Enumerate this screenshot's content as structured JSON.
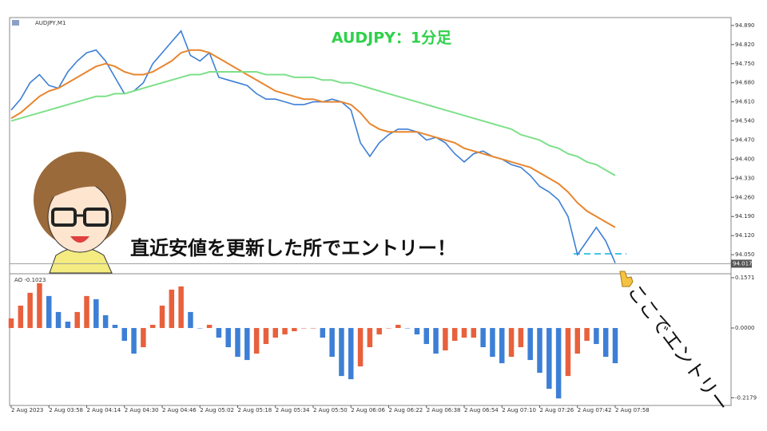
{
  "chart_data": [
    {
      "type": "line",
      "title": "AUDJPY,M1",
      "annotations": [
        "AUDJPY：1分足",
        "直近安値を更新した所でエントリー！",
        "ここでエントリー"
      ],
      "categories": [
        "2 Aug 2023",
        null,
        null,
        null,
        "2 Aug 03:58",
        null,
        null,
        null,
        "2 Aug 04:14",
        null,
        null,
        null,
        "2 Aug 04:30",
        null,
        null,
        null,
        "2 Aug 04:46",
        null,
        null,
        null,
        "2 Aug 05:02",
        null,
        null,
        null,
        "2 Aug 05:18",
        null,
        null,
        null,
        "2 Aug 05:34",
        null,
        null,
        null,
        "2 Aug 05:50",
        null,
        null,
        null,
        "2 Aug 06:06",
        null,
        null,
        null,
        "2 Aug 06:22",
        null,
        null,
        null,
        "2 Aug 06:38",
        null,
        null,
        null,
        "2 Aug 06:54",
        null,
        null,
        null,
        "2 Aug 07:10",
        null,
        null,
        null,
        "2 Aug 07:26",
        null,
        null,
        null,
        "2 Aug 07:42",
        null,
        null,
        null,
        "2 Aug 07:58"
      ],
      "series": [
        {
          "color": "#3d7fd6",
          "values": [
            94.58,
            94.62,
            94.68,
            94.71,
            94.67,
            94.66,
            94.72,
            94.76,
            94.79,
            94.8,
            94.76,
            94.7,
            94.64,
            94.65,
            94.68,
            94.75,
            94.79,
            94.83,
            94.87,
            94.78,
            94.76,
            94.79,
            94.7,
            94.69,
            94.68,
            94.67,
            94.64,
            94.62,
            94.62,
            94.61,
            94.6,
            94.6,
            94.61,
            94.61,
            94.62,
            94.61,
            94.58,
            94.46,
            94.41,
            94.46,
            94.49,
            94.51,
            94.51,
            94.5,
            94.47,
            94.48,
            94.46,
            94.42,
            94.39,
            94.42,
            94.43,
            94.41,
            94.4,
            94.38,
            94.37,
            94.34,
            94.3,
            94.28,
            94.25,
            94.19,
            94.05,
            94.1,
            94.15,
            94.1,
            94.02
          ]
        },
        {
          "color": "#e8862e",
          "values": [
            94.55,
            94.57,
            94.6,
            94.63,
            94.65,
            94.66,
            94.68,
            94.7,
            94.72,
            94.74,
            94.75,
            94.74,
            94.72,
            94.71,
            94.71,
            94.72,
            94.74,
            94.76,
            94.79,
            94.8,
            94.8,
            94.79,
            94.77,
            94.75,
            94.73,
            94.71,
            94.69,
            94.67,
            94.65,
            94.64,
            94.63,
            94.62,
            94.62,
            94.61,
            94.61,
            94.61,
            94.6,
            94.57,
            94.53,
            94.51,
            94.5,
            94.5,
            94.5,
            94.5,
            94.49,
            94.48,
            94.47,
            94.46,
            94.44,
            94.43,
            94.42,
            94.41,
            94.4,
            94.39,
            94.38,
            94.37,
            94.35,
            94.33,
            94.31,
            94.28,
            94.24,
            94.21,
            94.19,
            94.17,
            94.15
          ]
        },
        {
          "color": "#7ee08a",
          "values": [
            94.54,
            94.55,
            94.56,
            94.57,
            94.58,
            94.59,
            94.6,
            94.61,
            94.62,
            94.63,
            94.63,
            94.64,
            94.64,
            94.65,
            94.66,
            94.67,
            94.68,
            94.69,
            94.7,
            94.71,
            94.71,
            94.72,
            94.72,
            94.72,
            94.72,
            94.72,
            94.72,
            94.71,
            94.71,
            94.71,
            94.7,
            94.7,
            94.7,
            94.69,
            94.69,
            94.68,
            94.68,
            94.67,
            94.66,
            94.65,
            94.64,
            94.63,
            94.62,
            94.61,
            94.6,
            94.59,
            94.58,
            94.57,
            94.56,
            94.55,
            94.54,
            94.53,
            94.52,
            94.51,
            94.49,
            94.48,
            94.47,
            94.45,
            94.44,
            94.42,
            94.41,
            94.39,
            94.38,
            94.36,
            94.34
          ]
        }
      ],
      "last_price": 94.017,
      "ylim": [
        93.983,
        94.919
      ],
      "yticks": [
        {
          "value": 94.05,
          "label": "94.050"
        },
        {
          "value": 94.12,
          "label": "94.120"
        },
        {
          "value": 94.19,
          "label": "94.190"
        },
        {
          "value": 94.26,
          "label": "94.260"
        },
        {
          "value": 94.33,
          "label": "94.330"
        },
        {
          "value": 94.4,
          "label": "94.400"
        },
        {
          "value": 94.47,
          "label": "94.470"
        },
        {
          "value": 94.54,
          "label": "94.540"
        },
        {
          "value": 94.61,
          "label": "94.610"
        },
        {
          "value": 94.68,
          "label": "94.680"
        },
        {
          "value": 94.75,
          "label": "94.750"
        },
        {
          "value": 94.82,
          "label": "94.820"
        },
        {
          "value": 94.89,
          "label": "94.890"
        }
      ]
    },
    {
      "type": "bar",
      "title": "AO -0.1023",
      "up_color": "#e8603c",
      "down_color": "#3d7fd6",
      "values": [
        0.03,
        0.07,
        0.11,
        0.14,
        0.1,
        0.05,
        0.02,
        0.05,
        0.1,
        0.09,
        0.04,
        0.01,
        -0.04,
        -0.08,
        -0.06,
        0.01,
        0.07,
        0.12,
        0.13,
        0.05,
        0.0,
        0.01,
        -0.03,
        -0.06,
        -0.09,
        -0.1,
        -0.08,
        -0.05,
        -0.03,
        -0.02,
        -0.01,
        0.0,
        0.0,
        -0.03,
        -0.09,
        -0.15,
        -0.16,
        -0.12,
        -0.06,
        -0.02,
        0.0,
        0.01,
        0.0,
        -0.02,
        -0.05,
        -0.08,
        -0.07,
        -0.04,
        -0.03,
        -0.03,
        -0.06,
        -0.09,
        -0.11,
        -0.09,
        -0.06,
        -0.1,
        -0.14,
        -0.19,
        -0.22,
        -0.15,
        -0.08,
        -0.04,
        -0.05,
        -0.09,
        -0.11
      ],
      "ylim": [
        -0.242,
        0.167
      ],
      "yticks": [
        0.1571,
        {
          "value": 0,
          "label": "0.0000"
        },
        -0.2179
      ]
    }
  ]
}
